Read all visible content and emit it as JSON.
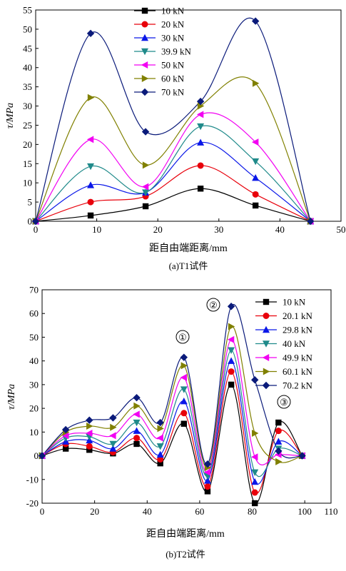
{
  "colors": {
    "s1": "#000000",
    "s2": "#e8000b",
    "s3": "#0a17e8",
    "s4": "#1f8a8a",
    "s5": "#f200f2",
    "s6": "#808000",
    "s7": "#0a1a7a"
  },
  "chart_data": [
    {
      "type": "line",
      "caption": "(a)T1试件",
      "xlabel": "距自由端距离/mm",
      "ylabel": "τ/MPa",
      "xlim": [
        0,
        50
      ],
      "ylim": [
        0,
        55
      ],
      "xticks": [
        "0",
        "10",
        "20",
        "30",
        "40",
        "50"
      ],
      "yticks": [
        "0",
        "5",
        "10",
        "15",
        "20",
        "25",
        "30",
        "35",
        "40",
        "45",
        "50",
        "55"
      ],
      "legend_position": "top-center",
      "x": [
        0,
        9,
        18,
        27,
        36,
        45
      ],
      "series": [
        {
          "name": "10 kN",
          "marker": "square",
          "color": "#000000",
          "values": [
            0,
            1.5,
            3.9,
            8.5,
            4.1,
            0
          ]
        },
        {
          "name": "20 kN",
          "marker": "circle",
          "color": "#e8000b",
          "values": [
            0,
            5.0,
            6.5,
            14.5,
            7.0,
            0
          ]
        },
        {
          "name": "30 kN",
          "marker": "triangle-up",
          "color": "#0a17e8",
          "values": [
            0,
            9.4,
            7.5,
            20.5,
            11.3,
            0
          ]
        },
        {
          "name": "39.9 kN",
          "marker": "triangle-down",
          "color": "#1f8a8a",
          "values": [
            0,
            14.3,
            7.5,
            24.7,
            15.6,
            0
          ]
        },
        {
          "name": "50 kN",
          "marker": "triangle-left",
          "color": "#f200f2",
          "values": [
            0,
            21.3,
            9.0,
            27.8,
            20.6,
            0
          ]
        },
        {
          "name": "60 kN",
          "marker": "triangle-right",
          "color": "#808000",
          "values": [
            0,
            32.2,
            14.6,
            30.0,
            35.9,
            0
          ]
        },
        {
          "name": "70 kN",
          "marker": "diamond",
          "color": "#0a1a7a",
          "values": [
            0,
            48.9,
            23.3,
            31.2,
            52.1,
            0
          ]
        }
      ]
    },
    {
      "type": "line",
      "caption": "(b)T2试件",
      "xlabel": "距自由端距离/mm",
      "ylabel": "τ/MPa",
      "xlim": [
        0,
        110
      ],
      "ylim": [
        -20,
        70
      ],
      "xticks": [
        "0",
        "20",
        "40",
        "60",
        "80",
        "100",
        "110"
      ],
      "yticks": [
        "-20",
        "-10",
        "0",
        "10",
        "20",
        "30",
        "40",
        "50",
        "60",
        "70"
      ],
      "legend_position": "right",
      "annotations": [
        "①",
        "②",
        "③"
      ],
      "x": [
        0,
        9,
        18,
        27,
        36,
        45,
        54,
        63,
        72,
        81,
        90,
        99
      ],
      "series": [
        {
          "name": "10 kN",
          "marker": "square",
          "color": "#000000",
          "values": [
            0,
            3.0,
            2.5,
            1.0,
            5.0,
            -3.2,
            13.5,
            -15.0,
            30.0,
            -20.0,
            14.0,
            0
          ]
        },
        {
          "name": "20.1 kN",
          "marker": "circle",
          "color": "#e8000b",
          "values": [
            0,
            5.0,
            4.0,
            1.5,
            7.5,
            -1.5,
            18.0,
            -13.0,
            35.5,
            -15.5,
            10.5,
            0
          ]
        },
        {
          "name": "29.8 kN",
          "marker": "triangle-up",
          "color": "#0a17e8",
          "values": [
            0,
            6.0,
            6.5,
            3.0,
            10.5,
            0.5,
            23.0,
            -10.5,
            40.0,
            -11.0,
            6.0,
            0
          ]
        },
        {
          "name": "40 kN",
          "marker": "triangle-down",
          "color": "#1f8a8a",
          "values": [
            0,
            7.5,
            8.0,
            5.0,
            14.0,
            4.0,
            28.0,
            -8.5,
            44.5,
            -7.0,
            3.0,
            0
          ]
        },
        {
          "name": "49.9 kN",
          "marker": "triangle-left",
          "color": "#f200f2",
          "values": [
            0,
            8.5,
            9.5,
            8.5,
            17.5,
            7.5,
            33.0,
            -7.0,
            49.0,
            -0.5,
            0.5,
            0
          ]
        },
        {
          "name": "60.1 kN",
          "marker": "triangle-right",
          "color": "#808000",
          "values": [
            0,
            10.0,
            12.5,
            12.0,
            21.0,
            11.5,
            38.0,
            -5.0,
            54.5,
            9.5,
            -2.5,
            0
          ]
        },
        {
          "name": "70.2 kN",
          "marker": "diamond",
          "color": "#0a1a7a",
          "values": [
            0,
            11.0,
            15.0,
            16.0,
            24.5,
            14.0,
            41.5,
            -3.5,
            63.0,
            32.0,
            2.0,
            0
          ]
        }
      ]
    }
  ]
}
